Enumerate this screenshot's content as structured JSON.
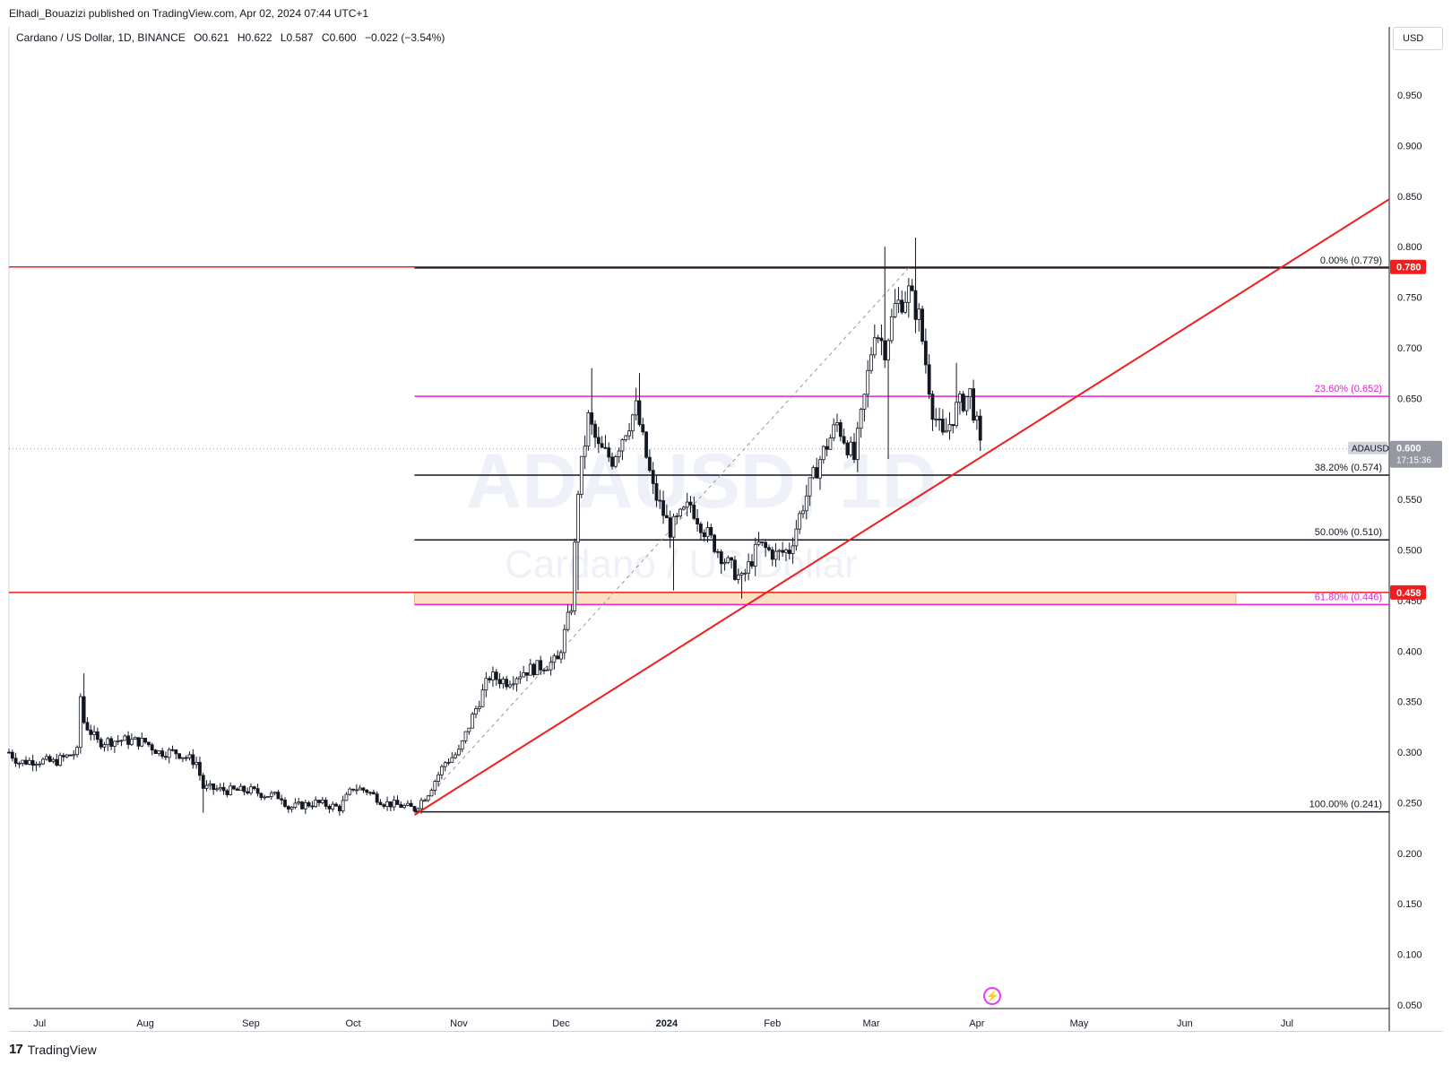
{
  "header": {
    "published": "Elhadi_Bouazizi published on TradingView.com, Apr 02, 2024 07:44 UTC+1"
  },
  "legend": {
    "symbol": "Cardano / US Dollar, 1D, BINANCE",
    "open": "O0.621",
    "high": "H0.622",
    "low": "L0.587",
    "close": "C0.600",
    "change": "−0.022 (−3.54%)"
  },
  "watermark": {
    "ticker": "ADAUSD, 1D",
    "name": "Cardano / US Dollar"
  },
  "currency": "USD",
  "footer": {
    "brand": "TradingView"
  },
  "colors": {
    "candle": "#131722",
    "resistance": "#f01e1e",
    "fib_magenta": "#e91ed8",
    "zone_fill": "#fde0c2",
    "price_badge": "#9598a1"
  },
  "chart_data": {
    "type": "candlestick",
    "symbol": "ADAUSD",
    "ylim": [
      0.05,
      1.0
    ],
    "yticks": [
      "0.950",
      "0.900",
      "0.850",
      "0.800",
      "0.750",
      "0.700",
      "0.650",
      "0.600",
      "0.550",
      "0.500",
      "0.450",
      "0.400",
      "0.350",
      "0.300",
      "0.250",
      "0.200",
      "0.150",
      "0.100",
      "0.050"
    ],
    "xticks": [
      "Jul",
      "Aug",
      "Sep",
      "Oct",
      "Nov",
      "Dec",
      "2024",
      "Feb",
      "Mar",
      "Apr",
      "May",
      "Jun",
      "Jul"
    ],
    "x_start": "2023-06-22",
    "x_end": "2024-07-31",
    "last_price": {
      "value": 0.6,
      "label": "ADAUSD",
      "price_label": "0.600",
      "countdown": "17:15:36"
    },
    "levels": [
      {
        "name": "resistance-high",
        "price": 0.78,
        "label": "0.780",
        "color": "#f01e1e"
      },
      {
        "name": "resistance-low",
        "price": 0.458,
        "label": "0.458",
        "color": "#f01e1e"
      }
    ],
    "fibonacci": [
      {
        "ratio": "0.00%",
        "price": 0.779,
        "label": "0.00% (0.779)",
        "color": "#131722"
      },
      {
        "ratio": "23.60%",
        "price": 0.652,
        "label": "23.60% (0.652)",
        "color": "#e91ed8"
      },
      {
        "ratio": "38.20%",
        "price": 0.574,
        "label": "38.20% (0.574)",
        "color": "#131722"
      },
      {
        "ratio": "50.00%",
        "price": 0.51,
        "label": "50.00% (0.510)",
        "color": "#131722"
      },
      {
        "ratio": "61.80%",
        "price": 0.446,
        "label": "61.80% (0.446)",
        "color": "#e91ed8"
      },
      {
        "ratio": "100.00%",
        "price": 0.241,
        "label": "100.00% (0.241)",
        "color": "#131722"
      }
    ],
    "fib_start_date": "2023-10-19",
    "zone": {
      "from_date": "2023-10-19",
      "to_date": "2024-06-16",
      "top": 0.458,
      "bottom": 0.446
    },
    "trendline": {
      "from": [
        "2023-10-19",
        0.238
      ],
      "to": [
        "2024-07-31",
        0.847
      ]
    },
    "diagonal": {
      "from": [
        "2023-10-19",
        0.241
      ],
      "to": [
        "2024-03-12",
        0.779
      ]
    },
    "anchors": [
      [
        "2023-06-22",
        0.3
      ],
      [
        "2023-06-25",
        0.29
      ],
      [
        "2023-06-30",
        0.292
      ],
      [
        "2023-07-05",
        0.29
      ],
      [
        "2023-07-12",
        0.3
      ],
      [
        "2023-07-13",
        0.355
      ],
      [
        "2023-07-14",
        0.33
      ],
      [
        "2023-07-18",
        0.31
      ],
      [
        "2023-07-25",
        0.312
      ],
      [
        "2023-08-01",
        0.31
      ],
      [
        "2023-08-05",
        0.3
      ],
      [
        "2023-08-10",
        0.3
      ],
      [
        "2023-08-16",
        0.29
      ],
      [
        "2023-08-18",
        0.265
      ],
      [
        "2023-08-25",
        0.262
      ],
      [
        "2023-09-01",
        0.262
      ],
      [
        "2023-09-05",
        0.258
      ],
      [
        "2023-09-10",
        0.256
      ],
      [
        "2023-09-12",
        0.245
      ],
      [
        "2023-09-20",
        0.25
      ],
      [
        "2023-09-27",
        0.245
      ],
      [
        "2023-10-01",
        0.265
      ],
      [
        "2023-10-05",
        0.262
      ],
      [
        "2023-10-10",
        0.25
      ],
      [
        "2023-10-15",
        0.247
      ],
      [
        "2023-10-19",
        0.244
      ],
      [
        "2023-10-23",
        0.26
      ],
      [
        "2023-10-28",
        0.29
      ],
      [
        "2023-11-01",
        0.3
      ],
      [
        "2023-11-05",
        0.335
      ],
      [
        "2023-11-10",
        0.375
      ],
      [
        "2023-11-15",
        0.37
      ],
      [
        "2023-11-20",
        0.38
      ],
      [
        "2023-11-25",
        0.385
      ],
      [
        "2023-11-30",
        0.39
      ],
      [
        "2023-12-04",
        0.445
      ],
      [
        "2023-12-06",
        0.56
      ],
      [
        "2023-12-09",
        0.63
      ],
      [
        "2023-12-12",
        0.6
      ],
      [
        "2023-12-16",
        0.59
      ],
      [
        "2023-12-20",
        0.62
      ],
      [
        "2023-12-23",
        0.64
      ],
      [
        "2023-12-28",
        0.56
      ],
      [
        "2024-01-02",
        0.52
      ],
      [
        "2024-01-08",
        0.545
      ],
      [
        "2024-01-12",
        0.52
      ],
      [
        "2024-01-18",
        0.49
      ],
      [
        "2024-01-23",
        0.47
      ],
      [
        "2024-01-28",
        0.505
      ],
      [
        "2024-02-02",
        0.495
      ],
      [
        "2024-02-06",
        0.5
      ],
      [
        "2024-02-10",
        0.545
      ],
      [
        "2024-02-15",
        0.59
      ],
      [
        "2024-02-20",
        0.625
      ],
      [
        "2024-02-25",
        0.59
      ],
      [
        "2024-02-28",
        0.65
      ],
      [
        "2024-03-02",
        0.72
      ],
      [
        "2024-03-05",
        0.7
      ],
      [
        "2024-03-08",
        0.74
      ],
      [
        "2024-03-12",
        0.755
      ],
      [
        "2024-03-15",
        0.73
      ],
      [
        "2024-03-19",
        0.64
      ],
      [
        "2024-03-22",
        0.61
      ],
      [
        "2024-03-26",
        0.64
      ],
      [
        "2024-03-30",
        0.655
      ],
      [
        "2024-04-01",
        0.622
      ],
      [
        "2024-04-02",
        0.6
      ]
    ],
    "wick_highs": [
      {
        "date": "2023-07-14",
        "high": 0.378
      },
      {
        "date": "2023-12-10",
        "high": 0.68
      },
      {
        "date": "2023-12-24",
        "high": 0.675
      },
      {
        "date": "2024-03-05",
        "high": 0.8
      },
      {
        "date": "2024-03-14",
        "high": 0.809
      },
      {
        "date": "2024-03-26",
        "high": 0.685
      }
    ],
    "wick_lows": [
      {
        "date": "2023-08-18",
        "low": 0.24
      },
      {
        "date": "2023-12-06",
        "low": 0.46
      },
      {
        "date": "2024-01-03",
        "low": 0.46
      },
      {
        "date": "2024-01-23",
        "low": 0.452
      },
      {
        "date": "2024-03-06",
        "low": 0.59
      }
    ]
  }
}
